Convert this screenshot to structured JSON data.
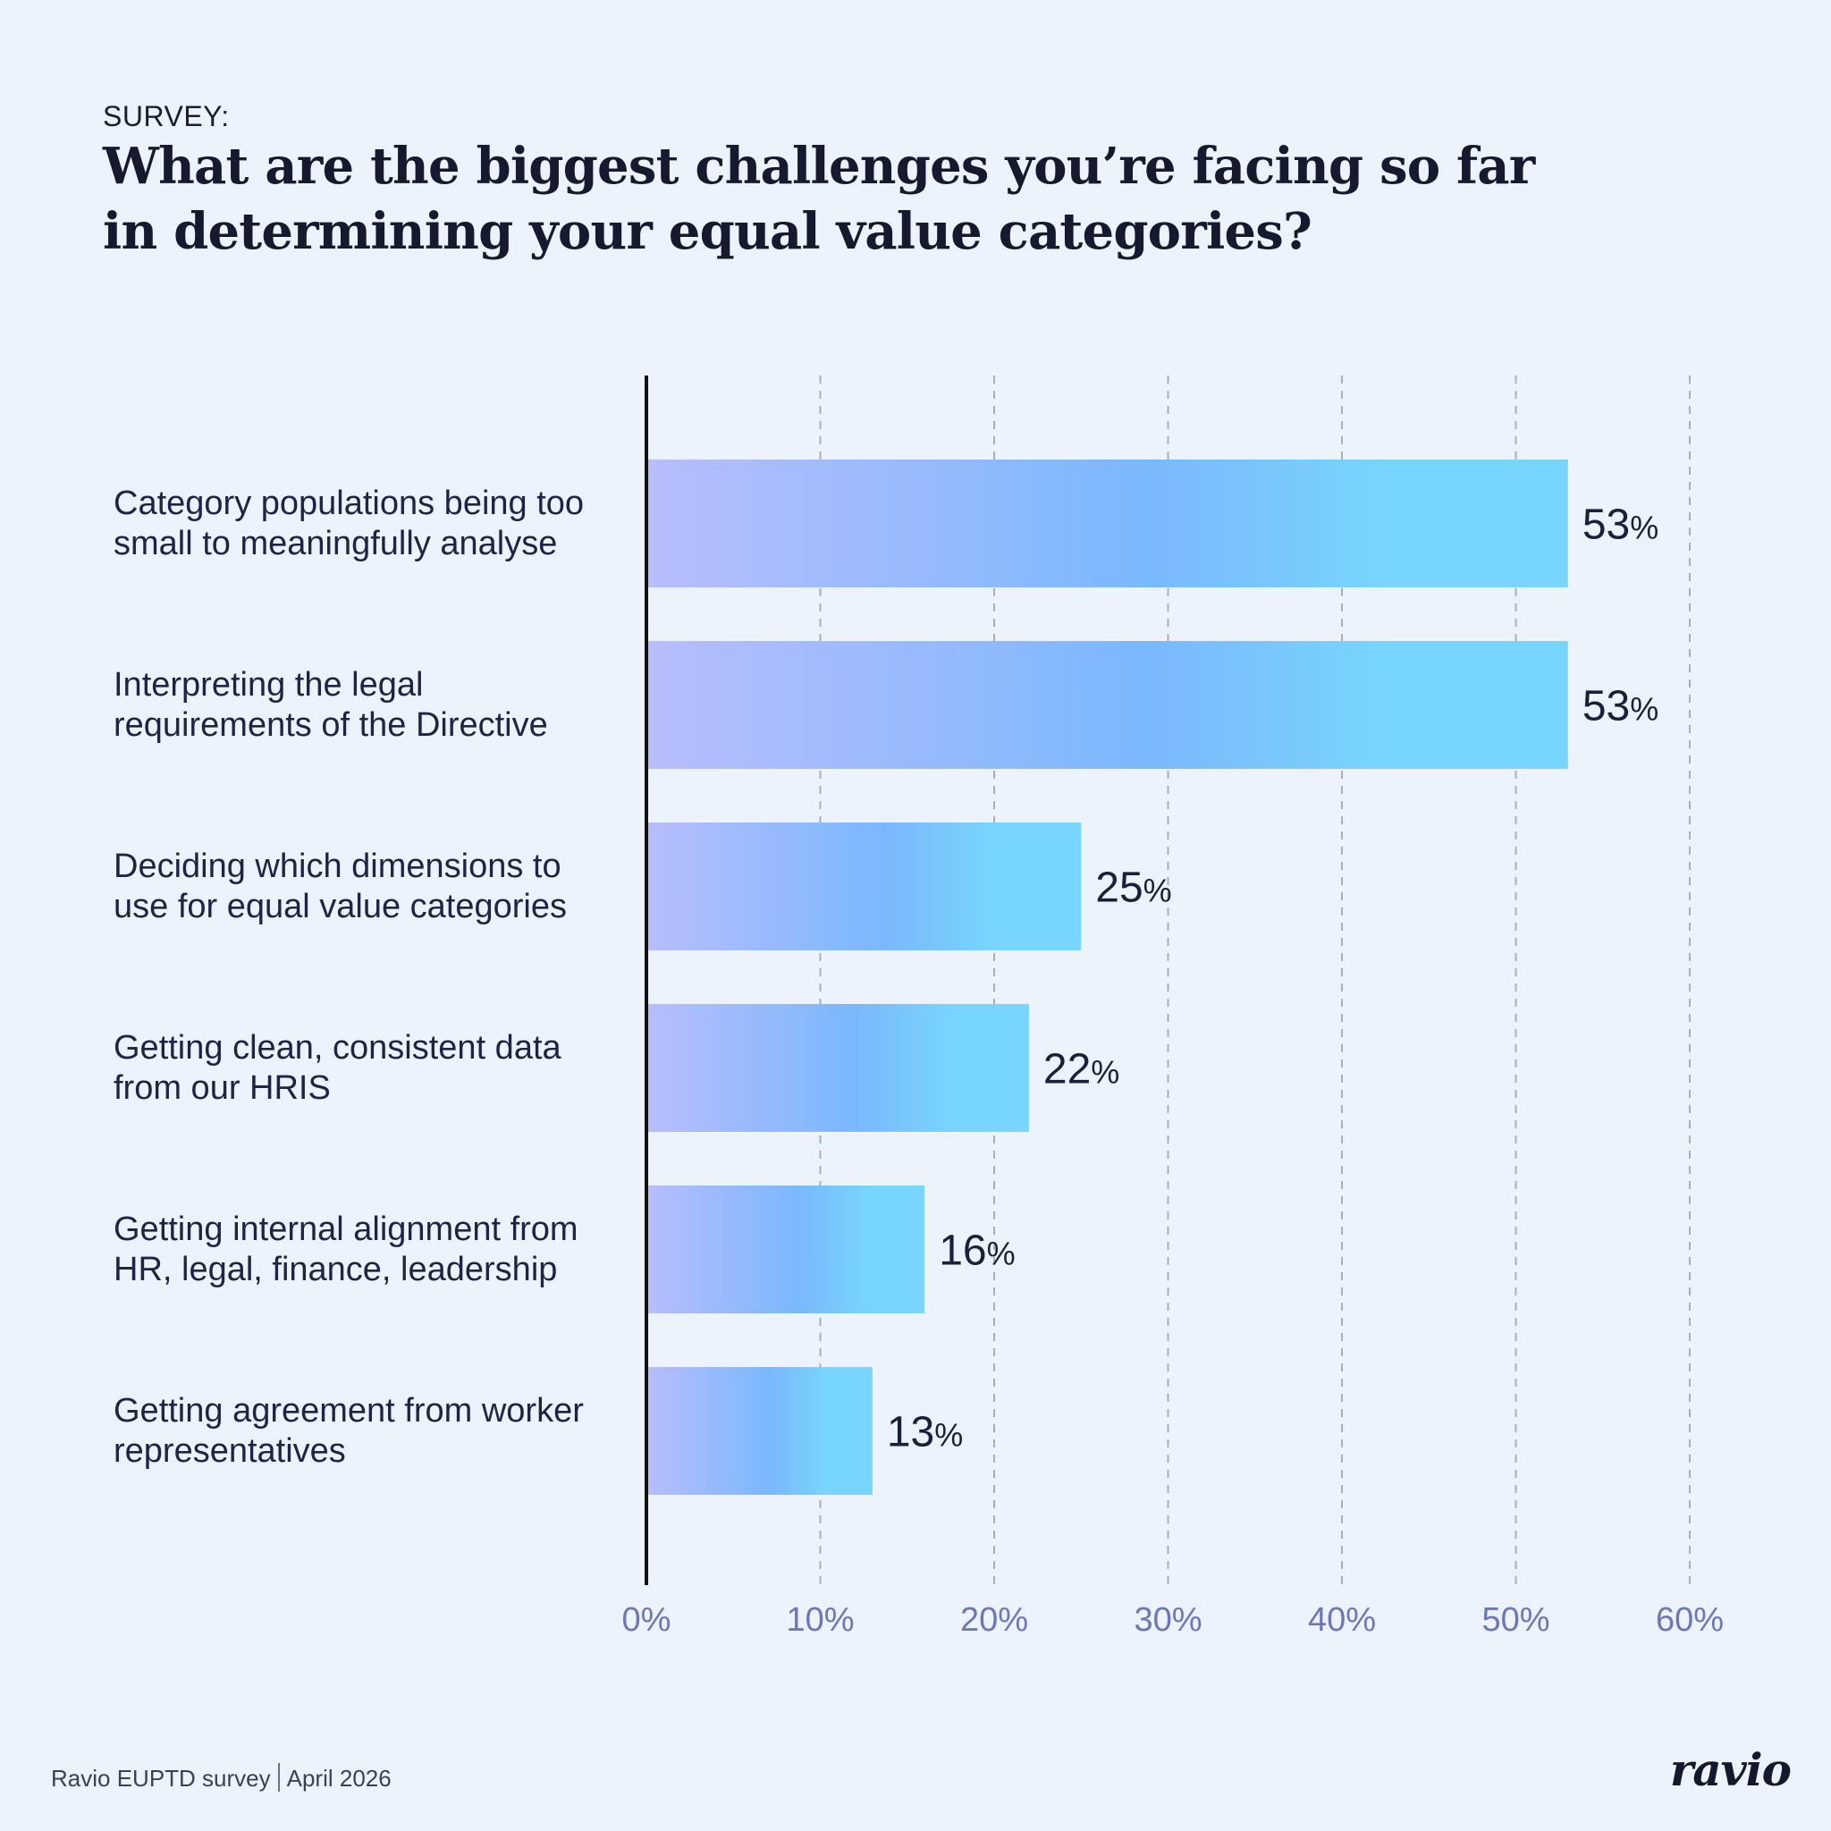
{
  "header": {
    "eyebrow": "SURVEY:",
    "title": "What are the biggest challenges you’re facing so far in determining your equal value categories?"
  },
  "chart_data": {
    "type": "bar",
    "orientation": "horizontal",
    "categories": [
      "Category populations being too small to meaningfully analyse",
      "Interpreting the legal requirements of the Directive",
      "Deciding which dimensions to use for equal value categories",
      "Getting clean, consistent data from our HRIS",
      "Getting internal alignment from HR, legal, finance, leadership",
      "Getting agreement from worker representatives"
    ],
    "category_lines": [
      [
        "Category populations being too",
        "small to meaningfully analyse"
      ],
      [
        "Interpreting the legal",
        "requirements of the Directive"
      ],
      [
        "Deciding which dimensions to",
        "use for equal value categories"
      ],
      [
        "Getting clean, consistent data",
        "from our HRIS"
      ],
      [
        "Getting internal alignment from",
        "HR, legal, finance, leadership"
      ],
      [
        "Getting agreement from worker",
        "representatives"
      ]
    ],
    "values": [
      53,
      53,
      25,
      22,
      16,
      13
    ],
    "data_labels": [
      "53",
      "53",
      "25",
      "22",
      "16",
      "13"
    ],
    "value_suffix": "%",
    "xlim": [
      0,
      60
    ],
    "x_ticks": [
      0,
      10,
      20,
      30,
      40,
      50,
      60
    ],
    "x_tick_labels": [
      "0%",
      "10%",
      "20%",
      "30%",
      "40%",
      "50%",
      "60%"
    ],
    "grid": "vertical dashed",
    "colors": {
      "bar_start": "#b8bdfd",
      "bar_mid": "#7ab8fd",
      "bar_end": "#78d5fd",
      "axis": "#111111",
      "grid": "#a8adc4",
      "tick_label": "#6d77b5"
    }
  },
  "footer": {
    "source": "Ravio EUPTD survey",
    "date": "April 2026",
    "logo": "ravio"
  }
}
